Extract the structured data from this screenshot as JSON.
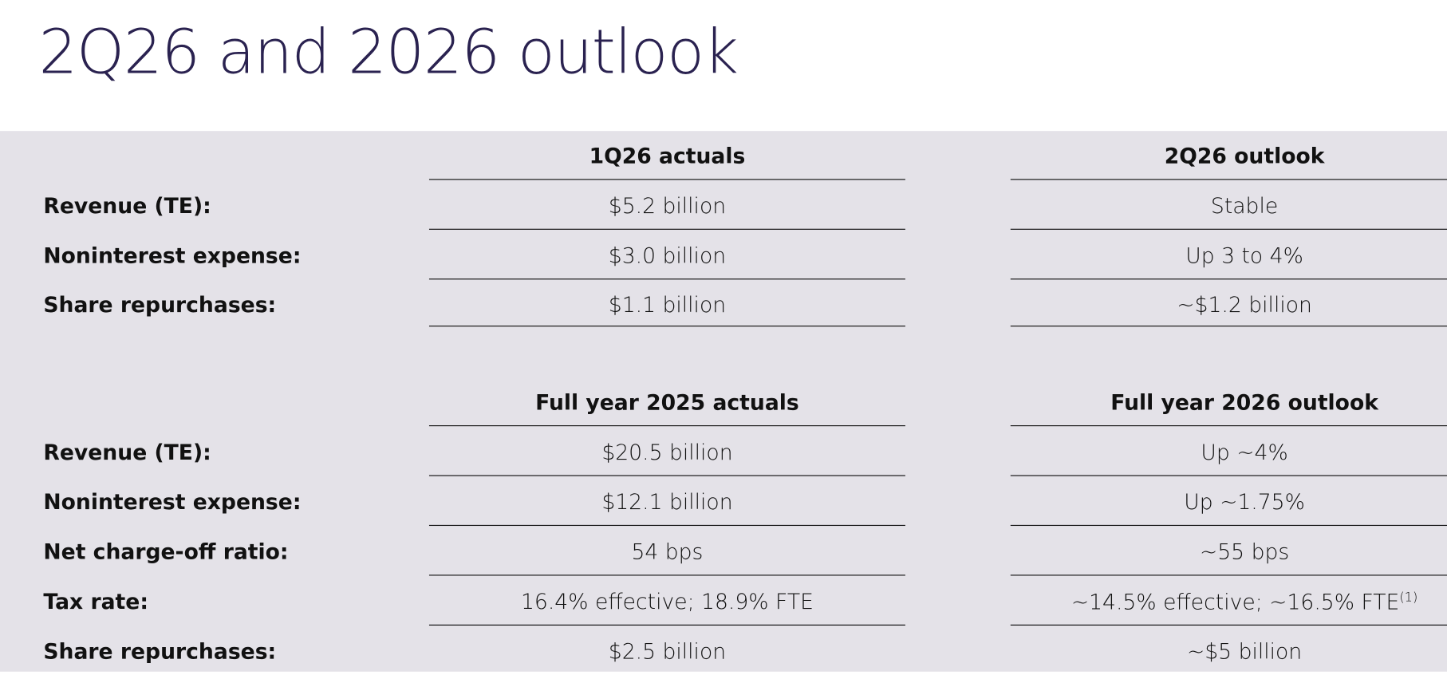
{
  "title": "2Q26 and 2026 outlook",
  "sections": [
    {
      "headers": [
        "1Q26 actuals",
        "2Q26 outlook"
      ],
      "rows": [
        {
          "label": "Revenue (TE):",
          "cells": [
            "$5.2 billion",
            "Stable"
          ]
        },
        {
          "label": "Noninterest expense:",
          "cells": [
            "$3.0 billion",
            "Up 3 to 4%"
          ]
        },
        {
          "label": "Share repurchases:",
          "cells": [
            "$1.1 billion",
            "~$1.2 billion"
          ]
        }
      ]
    },
    {
      "headers": [
        "Full year 2025 actuals",
        "Full year 2026 outlook"
      ],
      "rows": [
        {
          "label": "Revenue (TE):",
          "cells": [
            "$20.5 billion",
            "Up ~4%"
          ]
        },
        {
          "label": "Noninterest expense:",
          "cells": [
            "$12.1 billion",
            "Up ~1.75%"
          ]
        },
        {
          "label": "Net charge-off ratio:",
          "cells": [
            "54 bps",
            "~55 bps"
          ]
        },
        {
          "label": "Tax rate:",
          "cells": [
            "16.4% effective; 18.9% FTE",
            {
              "text": "~14.5% effective; ~16.5% FTE",
              "footnote": "(1)"
            }
          ]
        },
        {
          "label": "Share repurchases:",
          "cells": [
            "$2.5 billion",
            "~$5 billion"
          ]
        }
      ]
    }
  ]
}
